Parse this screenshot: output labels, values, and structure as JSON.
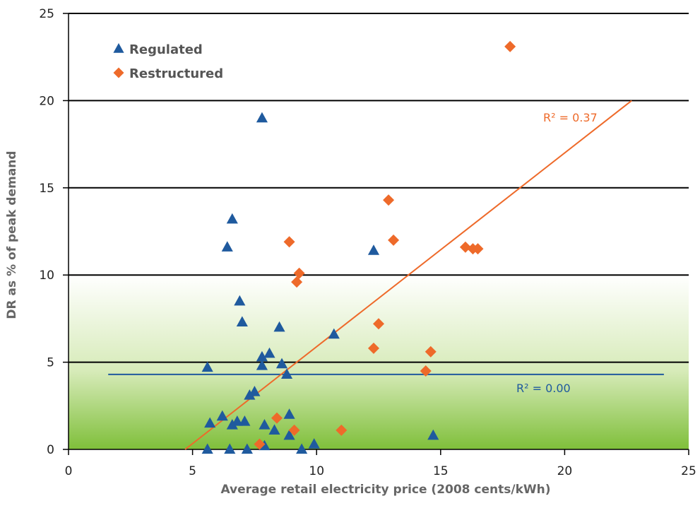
{
  "chart_data": {
    "type": "scatter",
    "xlabel": "Average retail electricity price (2008 cents/kWh)",
    "ylabel": "DR as % of peak demand",
    "xlim": [
      0,
      25
    ],
    "ylim": [
      0,
      25
    ],
    "xticks": [
      "0",
      "5",
      "10",
      "15",
      "20",
      "25"
    ],
    "yticks": [
      "0",
      "5",
      "10",
      "15",
      "20",
      "25"
    ],
    "grid": "horizontal",
    "legend": "top-left",
    "series": [
      {
        "name": "Regulated",
        "marker": "triangle",
        "color": "#1f5a9e",
        "trend_label": "R² = 0.00",
        "trend": [
          [
            1.6,
            4.3
          ],
          [
            24.0,
            4.3
          ]
        ],
        "points": [
          [
            7.8,
            19.0
          ],
          [
            6.6,
            13.2
          ],
          [
            6.4,
            11.6
          ],
          [
            12.3,
            11.4
          ],
          [
            6.9,
            8.5
          ],
          [
            7.0,
            7.3
          ],
          [
            8.5,
            7.0
          ],
          [
            10.7,
            6.6
          ],
          [
            8.1,
            5.5
          ],
          [
            7.8,
            5.3
          ],
          [
            8.6,
            4.9
          ],
          [
            7.8,
            4.8
          ],
          [
            5.6,
            4.7
          ],
          [
            8.8,
            4.3
          ],
          [
            7.5,
            3.3
          ],
          [
            7.3,
            3.1
          ],
          [
            6.2,
            1.9
          ],
          [
            8.9,
            2.0
          ],
          [
            6.8,
            1.6
          ],
          [
            7.1,
            1.6
          ],
          [
            5.7,
            1.5
          ],
          [
            6.6,
            1.4
          ],
          [
            7.9,
            1.4
          ],
          [
            8.3,
            1.1
          ],
          [
            8.9,
            0.8
          ],
          [
            14.7,
            0.8
          ],
          [
            7.9,
            0.2
          ],
          [
            9.9,
            0.3
          ],
          [
            5.6,
            0.0
          ],
          [
            6.5,
            0.0
          ],
          [
            7.2,
            0.0
          ],
          [
            9.4,
            0.0
          ]
        ]
      },
      {
        "name": "Restructured",
        "marker": "diamond",
        "color": "#ee6a2a",
        "trend_label": "R² = 0.37",
        "trend": [
          [
            4.7,
            0.0
          ],
          [
            22.7,
            20.0
          ]
        ],
        "points": [
          [
            17.8,
            23.1
          ],
          [
            12.9,
            14.3
          ],
          [
            13.1,
            12.0
          ],
          [
            8.9,
            11.9
          ],
          [
            16.0,
            11.6
          ],
          [
            16.3,
            11.5
          ],
          [
            16.5,
            11.5
          ],
          [
            9.3,
            10.1
          ],
          [
            9.2,
            9.6
          ],
          [
            12.5,
            7.2
          ],
          [
            12.3,
            5.8
          ],
          [
            14.6,
            5.6
          ],
          [
            14.4,
            4.5
          ],
          [
            8.4,
            1.8
          ],
          [
            9.1,
            1.1
          ],
          [
            11.0,
            1.1
          ],
          [
            7.7,
            0.3
          ]
        ]
      }
    ]
  }
}
